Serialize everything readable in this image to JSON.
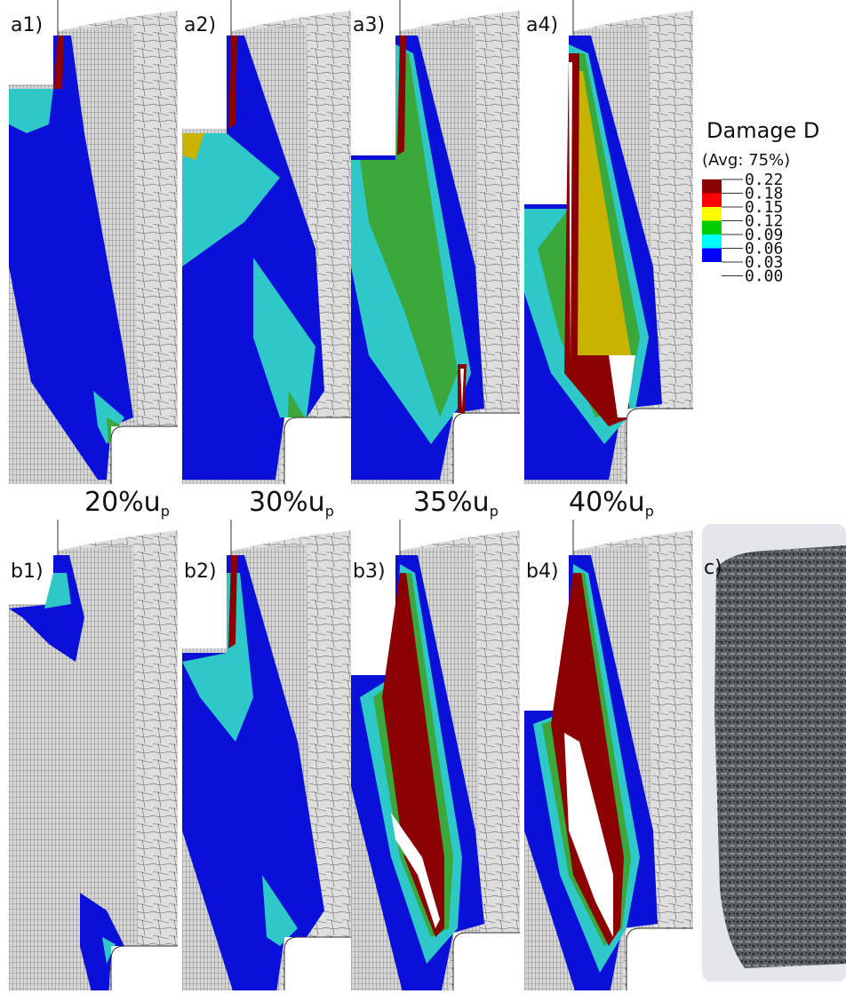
{
  "panels": {
    "a1": "a1)",
    "a2": "a2)",
    "a3": "a3)",
    "a4": "a4)",
    "b1": "b1)",
    "b2": "b2)",
    "b3": "b3)",
    "b4": "b4)",
    "c": "c)"
  },
  "captions": [
    {
      "main": "20%u",
      "sub": "p"
    },
    {
      "main": "30%u",
      "sub": "p"
    },
    {
      "main": "35%u",
      "sub": "p"
    },
    {
      "main": "40%u",
      "sub": "p"
    }
  ],
  "legend": {
    "title": "Damage D",
    "subtitle": "(Avg: 75%)",
    "levels": [
      "0.22",
      "0.18",
      "0.15",
      "0.12",
      "0.09",
      "0.06",
      "0.03",
      "0.00"
    ],
    "colors": [
      "#8b0000",
      "#ff0000",
      "#ffff00",
      "#00cc00",
      "#00ffff",
      "#0000ff",
      "#ffffff"
    ]
  }
}
